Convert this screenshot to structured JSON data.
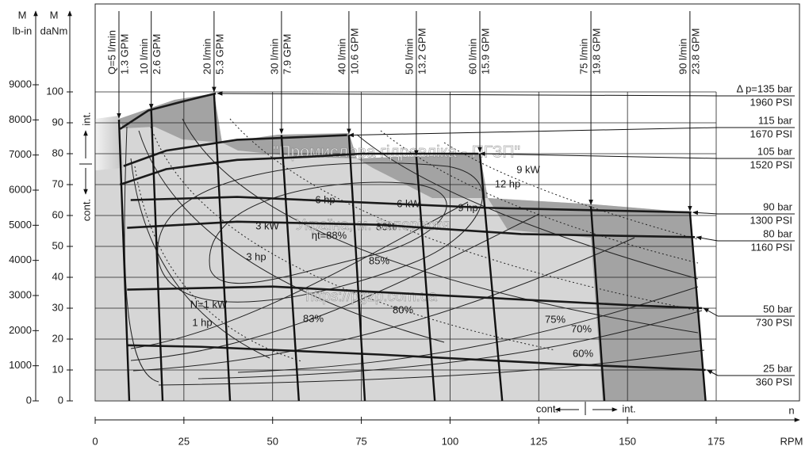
{
  "chart_data": {
    "type": "line",
    "x_label": "n",
    "x_unit": "RPM",
    "y_label": "M",
    "y_unit": "daNm",
    "y2_label": "M",
    "y2_unit": "lb-in",
    "xlim": [
      0,
      175
    ],
    "xticks": [
      0,
      25,
      50,
      75,
      100,
      125,
      150,
      175
    ],
    "ylim": [
      0,
      100
    ],
    "yticks": [
      0,
      10,
      20,
      30,
      40,
      50,
      60,
      70,
      80,
      90,
      100
    ],
    "y2lim": [
      0,
      9000
    ],
    "y2ticks": [
      0,
      1000,
      2000,
      3000,
      4000,
      5000,
      6000,
      7000,
      8000,
      9000
    ],
    "grid": true,
    "series": [
      {
        "name": "Δ p=135 bar",
        "psi": "1960 PSI",
        "color": "#1a1a1a",
        "x": [
          7,
          15,
          25,
          34
        ],
        "values": [
          88,
          94,
          97,
          99.5
        ]
      },
      {
        "name": "115 bar",
        "psi": "1670 PSI",
        "color": "#1a1a1a",
        "x": [
          8,
          20,
          40,
          71
        ],
        "values": [
          76,
          81,
          84.5,
          86
        ]
      },
      {
        "name": "105 bar",
        "psi": "1520 PSI",
        "color": "#1a1a1a",
        "x": [
          7,
          20,
          40,
          60,
          75,
          108
        ],
        "values": [
          70,
          75,
          78,
          79,
          80,
          80
        ]
      },
      {
        "name": "90 bar",
        "psi": "1300 PSI",
        "color": "#1a1a1a",
        "x": [
          10,
          40,
          80,
          110,
          168
        ],
        "values": [
          65,
          66,
          64,
          62.5,
          61
        ]
      },
      {
        "name": "80 bar",
        "psi": "1160 PSI",
        "color": "#1a1a1a",
        "x": [
          9,
          40,
          80,
          120,
          169
        ],
        "values": [
          56,
          58,
          57,
          54,
          53
        ]
      },
      {
        "name": "50 bar",
        "psi": "730 PSI",
        "color": "#1a1a1a",
        "x": [
          9,
          50,
          100,
          150,
          171
        ],
        "values": [
          36,
          37,
          34,
          31,
          30
        ]
      },
      {
        "name": "25 bar",
        "psi": "360 PSI",
        "color": "#1a1a1a",
        "x": [
          9,
          30,
          80,
          130,
          172
        ],
        "values": [
          18,
          17.5,
          15,
          12,
          10
        ]
      }
    ],
    "flows": [
      {
        "name": "Q=5 l/min",
        "gpm": "1.3 GPM",
        "x": [
          9.6,
          6.7
        ],
        "values": [
          0,
          91
        ]
      },
      {
        "name": "10 l/min",
        "gpm": "2.6 GPM",
        "x": [
          19,
          15.8
        ],
        "values": [
          0,
          94
        ]
      },
      {
        "name": "20 l/min",
        "gpm": "5.3 GPM",
        "x": [
          38,
          33.5
        ],
        "values": [
          0,
          99.5
        ]
      },
      {
        "name": "30 l/min",
        "gpm": "7.9 GPM",
        "x": [
          57.4,
          52.5
        ],
        "values": [
          0,
          86
        ]
      },
      {
        "name": "40 l/min",
        "gpm": "10.6 GPM",
        "x": [
          76,
          71.5
        ],
        "values": [
          0,
          86
        ]
      },
      {
        "name": "50 l/min",
        "gpm": "13.2 GPM",
        "x": [
          95.7,
          90.5
        ],
        "values": [
          0,
          79
        ]
      },
      {
        "name": "60 l/min",
        "gpm": "15.9 GPM",
        "x": [
          114.7,
          108.4
        ],
        "values": [
          0,
          80
        ]
      },
      {
        "name": "75 l/min",
        "gpm": "19.8 GPM",
        "x": [
          143.5,
          139.7
        ],
        "values": [
          0,
          63
        ]
      },
      {
        "name": "90 l/min",
        "gpm": "23.8 GPM",
        "x": [
          172,
          167.6
        ],
        "values": [
          0,
          61
        ]
      }
    ],
    "zone_labels": [
      "int.",
      "cont.",
      "cont.",
      "int."
    ],
    "efficiency_labels": [
      "ηt=88%",
      "86%",
      "85%",
      "83%",
      "80%",
      "75%",
      "70%",
      "60%"
    ],
    "power_labels": [
      "N=1 kW",
      "1 hp",
      "3 hp",
      "3 kW",
      "6 hp",
      "6 kW",
      "9 hp",
      "12 hp",
      "9 kW"
    ],
    "watermarks": [
      "\"Промислова гідравліка - ПГЗП\"",
      "Україна, м. Запоріжжя",
      "https://pgzp.com.ua"
    ]
  }
}
